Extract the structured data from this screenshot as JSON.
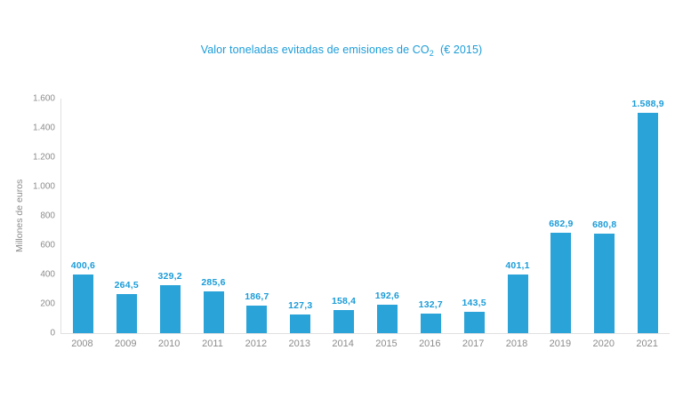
{
  "title": {
    "prefix": "Valor toneladas evitadas de emisiones de CO",
    "subscript": "2",
    "suffix": "  (€ 2015)"
  },
  "chart_data": {
    "type": "bar",
    "title": "Valor toneladas evitadas de emisiones de CO2 (€ 2015)",
    "categories": [
      "2008",
      "2009",
      "2010",
      "2011",
      "2012",
      "2013",
      "2014",
      "2015",
      "2016",
      "2017",
      "2018",
      "2019",
      "2020",
      "2021"
    ],
    "values": [
      400.6,
      264.5,
      329.2,
      285.6,
      186.7,
      127.3,
      158.4,
      192.6,
      132.7,
      143.5,
      401.1,
      682.9,
      680.8,
      1588.9
    ],
    "value_labels": [
      "400,6",
      "264,5",
      "329,2",
      "285,6",
      "186,7",
      "127,3",
      "158,4",
      "192,6",
      "132,7",
      "143,5",
      "401,1",
      "682,9",
      "680,8",
      "1.588,9"
    ],
    "xlabel": "",
    "ylabel": "Millones de euros",
    "ylim": [
      0,
      1600
    ],
    "yticks": [
      {
        "value": 0,
        "label": "0"
      },
      {
        "value": 200,
        "label": "200"
      },
      {
        "value": 400,
        "label": "400"
      },
      {
        "value": 600,
        "label": "600"
      },
      {
        "value": 800,
        "label": "800"
      },
      {
        "value": 1000,
        "label": "1.000"
      },
      {
        "value": 1200,
        "label": "1.200"
      },
      {
        "value": 1400,
        "label": "1.400"
      },
      {
        "value": 1600,
        "label": "1.600"
      }
    ],
    "grid": false,
    "legend": "none",
    "colors": {
      "bar": "#29a3d8",
      "value_label": "#1b9cd8",
      "title": "#1b9cd8",
      "axis_text": "#8c8c8c",
      "axis_line": "#e0e0e0",
      "background": "#ffffff"
    }
  }
}
